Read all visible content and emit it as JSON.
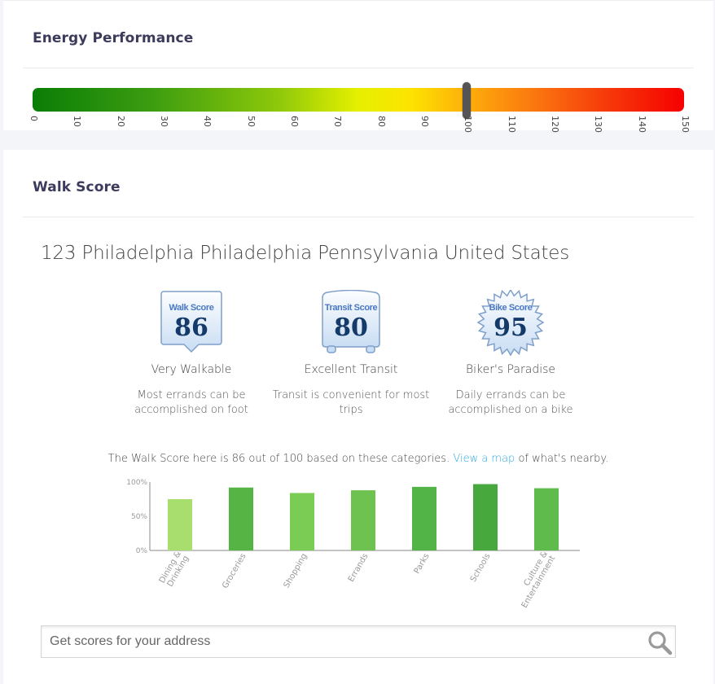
{
  "energy": {
    "title": "Energy Performance",
    "ticks": [
      "0",
      "10",
      "20",
      "30",
      "40",
      "50",
      "60",
      "70",
      "80",
      "90",
      "100",
      "110",
      "120",
      "130",
      "140",
      "150"
    ],
    "scale_max": 150,
    "marker_value": 100,
    "gradient_colors": [
      "#0a7d06",
      "#e6f000",
      "#f70000"
    ]
  },
  "walk": {
    "title": "Walk Score",
    "address": "123 Philadelphia Philadelphia Pennsylvania United States",
    "scores": [
      {
        "badge_label": "Walk Score",
        "value": "86",
        "description": "Very Walkable",
        "detail": "Most errands can be accomplished on foot",
        "icon": "walk-score-badge-icon"
      },
      {
        "badge_label": "Transit Score",
        "value": "80",
        "description": "Excellent Transit",
        "detail": "Transit is convenient for most trips",
        "icon": "transit-score-badge-icon"
      },
      {
        "badge_label": "Bike Score",
        "value": "95",
        "description": "Biker's Paradise",
        "detail": "Daily errands can be accomplished on a bike",
        "icon": "bike-score-badge-icon"
      }
    ],
    "summary_prefix": "The Walk Score here is 86 out of 100 based on these categories.",
    "summary_link": "View a map",
    "summary_suffix": "of what's nearby.",
    "search_placeholder": "Get scores for your address"
  },
  "chart_data": {
    "type": "bar",
    "categories": [
      "Dining & Drinking",
      "Groceries",
      "Shopping",
      "Errands",
      "Parks",
      "Schools",
      "Culture & Entertainment"
    ],
    "values": [
      75,
      92,
      84,
      88,
      93,
      97,
      91
    ],
    "ylim": [
      0,
      100
    ],
    "yticks": [
      "100%",
      "50%",
      "0%"
    ],
    "bar_colors": [
      "#a8de6e",
      "#55b444",
      "#7acc55",
      "#6ec24f",
      "#52b447",
      "#47a83e",
      "#5fbb4b"
    ]
  }
}
